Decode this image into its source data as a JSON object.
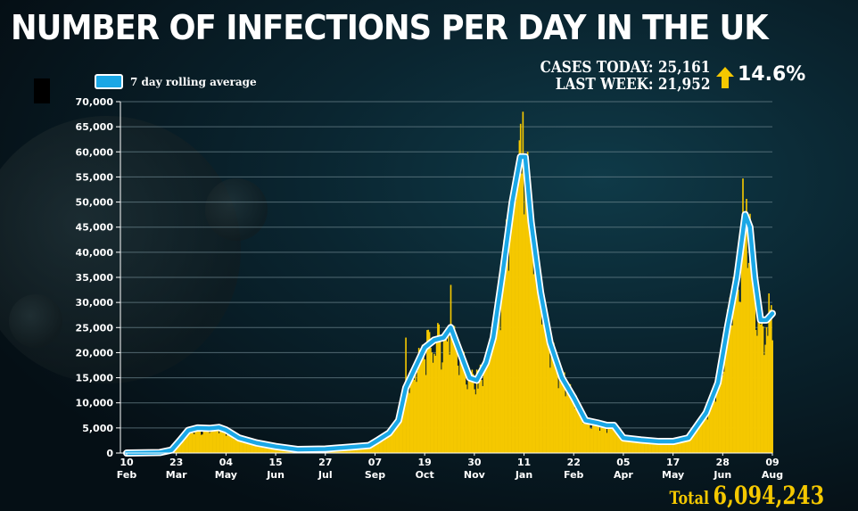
{
  "title": "NUMBER OF INFECTIONS PER DAY IN THE UK",
  "legend_label": "7 day rolling average",
  "stats": {
    "cases_today": "CASES TODAY: 25,161",
    "last_week": "LAST WEEK: 21,952",
    "change": "14.6%"
  },
  "total": {
    "label": "Total",
    "value": "6,094,243"
  },
  "colors": {
    "bars": "#f5c800",
    "line": "#1aa7e6",
    "line_outline": "#ffffff",
    "arrow": "#f5c800"
  },
  "chart_data": {
    "type": "bar",
    "title": "NUMBER OF INFECTIONS PER DAY IN THE UK",
    "xlabel": "",
    "ylabel": "",
    "ylim": [
      0,
      70000
    ],
    "x_range_days": [
      0,
      546
    ],
    "yticks": [
      "0",
      "5,000",
      "10,000",
      "15,000",
      "20,000",
      "25,000",
      "30,000",
      "35,000",
      "40,000",
      "45,000",
      "50,000",
      "55,000",
      "60,000",
      "65,000",
      "70,000"
    ],
    "xticks": [
      {
        "day": "10",
        "month": "Feb"
      },
      {
        "day": "23",
        "month": "Mar"
      },
      {
        "day": "04",
        "month": "May"
      },
      {
        "day": "15",
        "month": "Jun"
      },
      {
        "day": "27",
        "month": "Jul"
      },
      {
        "day": "07",
        "month": "Sep"
      },
      {
        "day": "19",
        "month": "Oct"
      },
      {
        "day": "30",
        "month": "Nov"
      },
      {
        "day": "11",
        "month": "Jan"
      },
      {
        "day": "22",
        "month": "Feb"
      },
      {
        "day": "05",
        "month": "Apr"
      },
      {
        "day": "17",
        "month": "May"
      },
      {
        "day": "28",
        "month": "Jun"
      },
      {
        "day": "09",
        "month": "Aug"
      }
    ],
    "rolling_average": [
      [
        0,
        0
      ],
      [
        28,
        100
      ],
      [
        38,
        600
      ],
      [
        45,
        2500
      ],
      [
        52,
        4500
      ],
      [
        60,
        5000
      ],
      [
        70,
        4900
      ],
      [
        78,
        5100
      ],
      [
        84,
        4600
      ],
      [
        95,
        3000
      ],
      [
        110,
        2000
      ],
      [
        126,
        1300
      ],
      [
        145,
        700
      ],
      [
        168,
        800
      ],
      [
        190,
        1200
      ],
      [
        205,
        1500
      ],
      [
        212,
        2500
      ],
      [
        222,
        4000
      ],
      [
        230,
        6500
      ],
      [
        236,
        13000
      ],
      [
        242,
        16000
      ],
      [
        252,
        21000
      ],
      [
        260,
        22500
      ],
      [
        268,
        23000
      ],
      [
        274,
        25000
      ],
      [
        282,
        20000
      ],
      [
        290,
        15000
      ],
      [
        296,
        14500
      ],
      [
        304,
        18000
      ],
      [
        310,
        23000
      ],
      [
        318,
        36000
      ],
      [
        326,
        50000
      ],
      [
        333,
        59000
      ],
      [
        337,
        59000
      ],
      [
        342,
        46000
      ],
      [
        350,
        32000
      ],
      [
        358,
        22000
      ],
      [
        368,
        15000
      ],
      [
        378,
        11000
      ],
      [
        388,
        6500
      ],
      [
        398,
        6000
      ],
      [
        406,
        5500
      ],
      [
        412,
        5500
      ],
      [
        420,
        3000
      ],
      [
        435,
        2600
      ],
      [
        450,
        2300
      ],
      [
        462,
        2300
      ],
      [
        475,
        3000
      ],
      [
        490,
        8000
      ],
      [
        500,
        14000
      ],
      [
        508,
        25000
      ],
      [
        516,
        35000
      ],
      [
        523,
        47500
      ],
      [
        527,
        45000
      ],
      [
        531,
        35000
      ],
      [
        536,
        26500
      ],
      [
        541,
        26500
      ],
      [
        546,
        27800
      ]
    ],
    "daily_spikes": [
      [
        236,
        23000
      ],
      [
        274,
        33500
      ],
      [
        335,
        68000
      ],
      [
        521,
        54700
      ],
      [
        543,
        31800
      ]
    ]
  }
}
